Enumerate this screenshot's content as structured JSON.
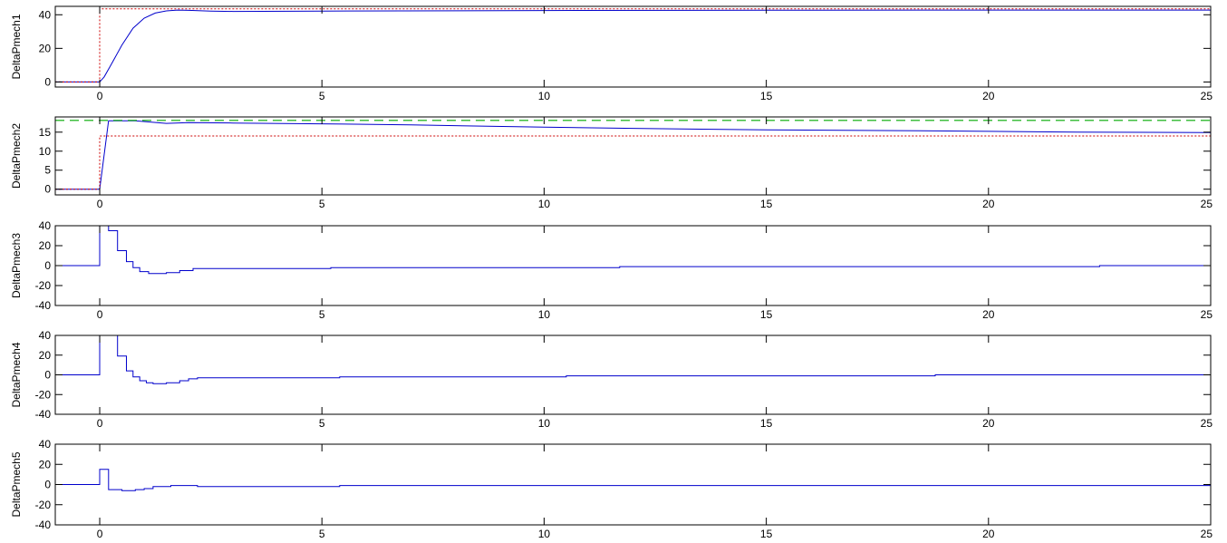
{
  "chart_data": [
    {
      "type": "line",
      "ylabel": "DeltaPmech1",
      "xlim": [
        -1,
        25
      ],
      "ylim": [
        -3,
        45
      ],
      "xticks": [
        0,
        5,
        10,
        15,
        20,
        25
      ],
      "yticks": [
        0,
        20,
        40
      ],
      "series": [
        {
          "style": "solid",
          "color": "#0000cc",
          "x": [
            -1,
            0,
            0.1,
            0.25,
            0.5,
            0.75,
            1.0,
            1.25,
            1.5,
            1.75,
            2.0,
            2.5,
            3,
            5,
            10,
            15,
            20,
            25
          ],
          "y": [
            0,
            0,
            3,
            10,
            22,
            32,
            38,
            41,
            42.3,
            42.8,
            42.6,
            42.2,
            42,
            42.2,
            42.5,
            42.7,
            42.8,
            42.8
          ]
        },
        {
          "style": "dotted",
          "color": "#cc0000",
          "x": [
            -1,
            0,
            0,
            25
          ],
          "y": [
            0,
            0,
            43.5,
            43.5
          ]
        }
      ]
    },
    {
      "type": "line",
      "ylabel": "DeltaPmech2",
      "xlim": [
        -1,
        25
      ],
      "ylim": [
        -1.5,
        19
      ],
      "xticks": [
        0,
        5,
        10,
        15,
        20,
        25
      ],
      "yticks": [
        0,
        5,
        10,
        15
      ],
      "series": [
        {
          "style": "solid",
          "color": "#0000cc",
          "x": [
            -1,
            0,
            0.2,
            0.8,
            1.5,
            2,
            3,
            5,
            7,
            10,
            12,
            15,
            18,
            20,
            22,
            25
          ],
          "y": [
            0,
            0,
            18,
            18,
            17.3,
            17.5,
            17.4,
            17.2,
            16.9,
            16.3,
            16.0,
            15.6,
            15.4,
            15.2,
            15.0,
            14.9
          ]
        },
        {
          "style": "dashed",
          "color": "#00aa00",
          "x": [
            -1,
            25
          ],
          "y": [
            18.1,
            18.1
          ]
        },
        {
          "style": "dotted",
          "color": "#cc0000",
          "x": [
            -1,
            0,
            0,
            25
          ],
          "y": [
            0,
            0,
            14.0,
            14.0
          ]
        }
      ]
    },
    {
      "type": "line",
      "ylabel": "DeltaPmech3",
      "xlim": [
        -1,
        25
      ],
      "ylim": [
        -40,
        40
      ],
      "xticks": [
        0,
        5,
        10,
        15,
        20,
        25
      ],
      "yticks": [
        -40,
        -20,
        0,
        20,
        40
      ],
      "series": [
        {
          "style": "step",
          "color": "#0000cc",
          "x": [
            -1,
            0,
            0.2,
            0.4,
            0.6,
            0.75,
            0.9,
            1.1,
            1.5,
            1.8,
            2.1,
            5.2,
            11.7,
            22.5,
            25
          ],
          "y": [
            0,
            40,
            35,
            15,
            4,
            -2,
            -6,
            -8,
            -7,
            -5,
            -3,
            -2,
            -1,
            0,
            0
          ]
        }
      ]
    },
    {
      "type": "line",
      "ylabel": "DeltaPmech4",
      "xlim": [
        -1,
        25
      ],
      "ylim": [
        -40,
        40
      ],
      "xticks": [
        0,
        5,
        10,
        15,
        20,
        25
      ],
      "yticks": [
        -40,
        -20,
        0,
        20,
        40
      ],
      "series": [
        {
          "style": "step",
          "color": "#0000cc",
          "x": [
            -1,
            0,
            0.4,
            0.6,
            0.75,
            0.9,
            1.05,
            1.2,
            1.5,
            1.8,
            2.0,
            2.2,
            5.4,
            10.5,
            18.8,
            25
          ],
          "y": [
            0,
            40,
            19,
            4,
            -2,
            -6,
            -8,
            -9,
            -8,
            -6,
            -4,
            -3,
            -2,
            -1,
            0,
            0
          ]
        }
      ]
    },
    {
      "type": "line",
      "ylabel": "DeltaPmech5",
      "xlim": [
        -1,
        25
      ],
      "ylim": [
        -40,
        40
      ],
      "xticks": [
        0,
        5,
        10,
        15,
        20,
        25
      ],
      "yticks": [
        -40,
        -20,
        0,
        20,
        40
      ],
      "series": [
        {
          "style": "step",
          "color": "#0000cc",
          "x": [
            -1,
            0,
            0.2,
            0.5,
            0.8,
            1.0,
            1.2,
            1.6,
            2.2,
            5.4,
            25
          ],
          "y": [
            0,
            15,
            -5,
            -6,
            -5,
            -4,
            -2,
            -1,
            -2,
            -1,
            -1
          ]
        }
      ]
    }
  ]
}
